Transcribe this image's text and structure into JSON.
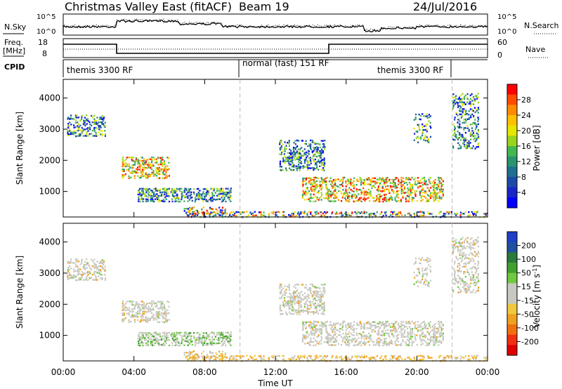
{
  "header": {
    "station": "Christmas Valley East (fitACF)",
    "beam": "Beam 19",
    "date": "24/Jul/2016"
  },
  "top_panels": {
    "nsky_label": "N.Sky",
    "nsky_ticks": [
      "10^5",
      "10^0"
    ],
    "nsearch_label": "N.Search",
    "nsearch_ticks": [
      "10^5",
      "10^0"
    ],
    "freq_label": "Freq.",
    "freq_unit": "[MHz]",
    "freq_ticks": [
      "18",
      "8"
    ],
    "nave_label": "Nave",
    "nave_ticks": [
      "60",
      "0"
    ],
    "cpid_label": "CPID",
    "cpid_segments": [
      "themis 3300 RF",
      "normal (fast) 151 RF",
      "themis 3300 RF"
    ]
  },
  "chart_data": [
    {
      "type": "heatmap",
      "name": "power",
      "ylabel": "Slant Range [km]",
      "xlabel": "",
      "ylim": [
        180,
        4600
      ],
      "yticks": [
        1000,
        2000,
        3000,
        4000
      ],
      "x_ticks": [
        "00:00",
        "04:00",
        "08:00",
        "12:00",
        "16:00",
        "20:00",
        "00:00"
      ],
      "colorbar": {
        "label": "Power [dB]",
        "ticks": [
          "28",
          "24",
          "20",
          "16",
          "12",
          "8",
          "4"
        ],
        "colors": [
          "#ff0000",
          "#ff4d00",
          "#ff8c00",
          "#ffc000",
          "#e6e600",
          "#9ad41e",
          "#44b850",
          "#2a9470",
          "#1f6f8f",
          "#1c4aa8",
          "#1a26c8",
          "#0000ff"
        ]
      }
    },
    {
      "type": "heatmap",
      "name": "velocity",
      "ylabel": "Slant Range [km]",
      "xlabel": "Time UT",
      "ylim": [
        180,
        4600
      ],
      "yticks": [
        1000,
        2000,
        3000,
        4000
      ],
      "x_ticks": [
        "00:00",
        "04:00",
        "08:00",
        "12:00",
        "16:00",
        "20:00",
        "00:00"
      ],
      "colorbar": {
        "label": "Velocity [m s^-1]",
        "ticks": [
          "200",
          "100",
          "50",
          "15",
          "-15",
          "-50",
          "-100",
          "-200"
        ],
        "colors": [
          "#2040c8",
          "#2050a0",
          "#2a7a3c",
          "#40a030",
          "#70c840",
          "#c8c8c0",
          "#c8c8c0",
          "#f0c840",
          "#f0a020",
          "#f07010",
          "#f03010",
          "#e00000"
        ]
      }
    }
  ]
}
